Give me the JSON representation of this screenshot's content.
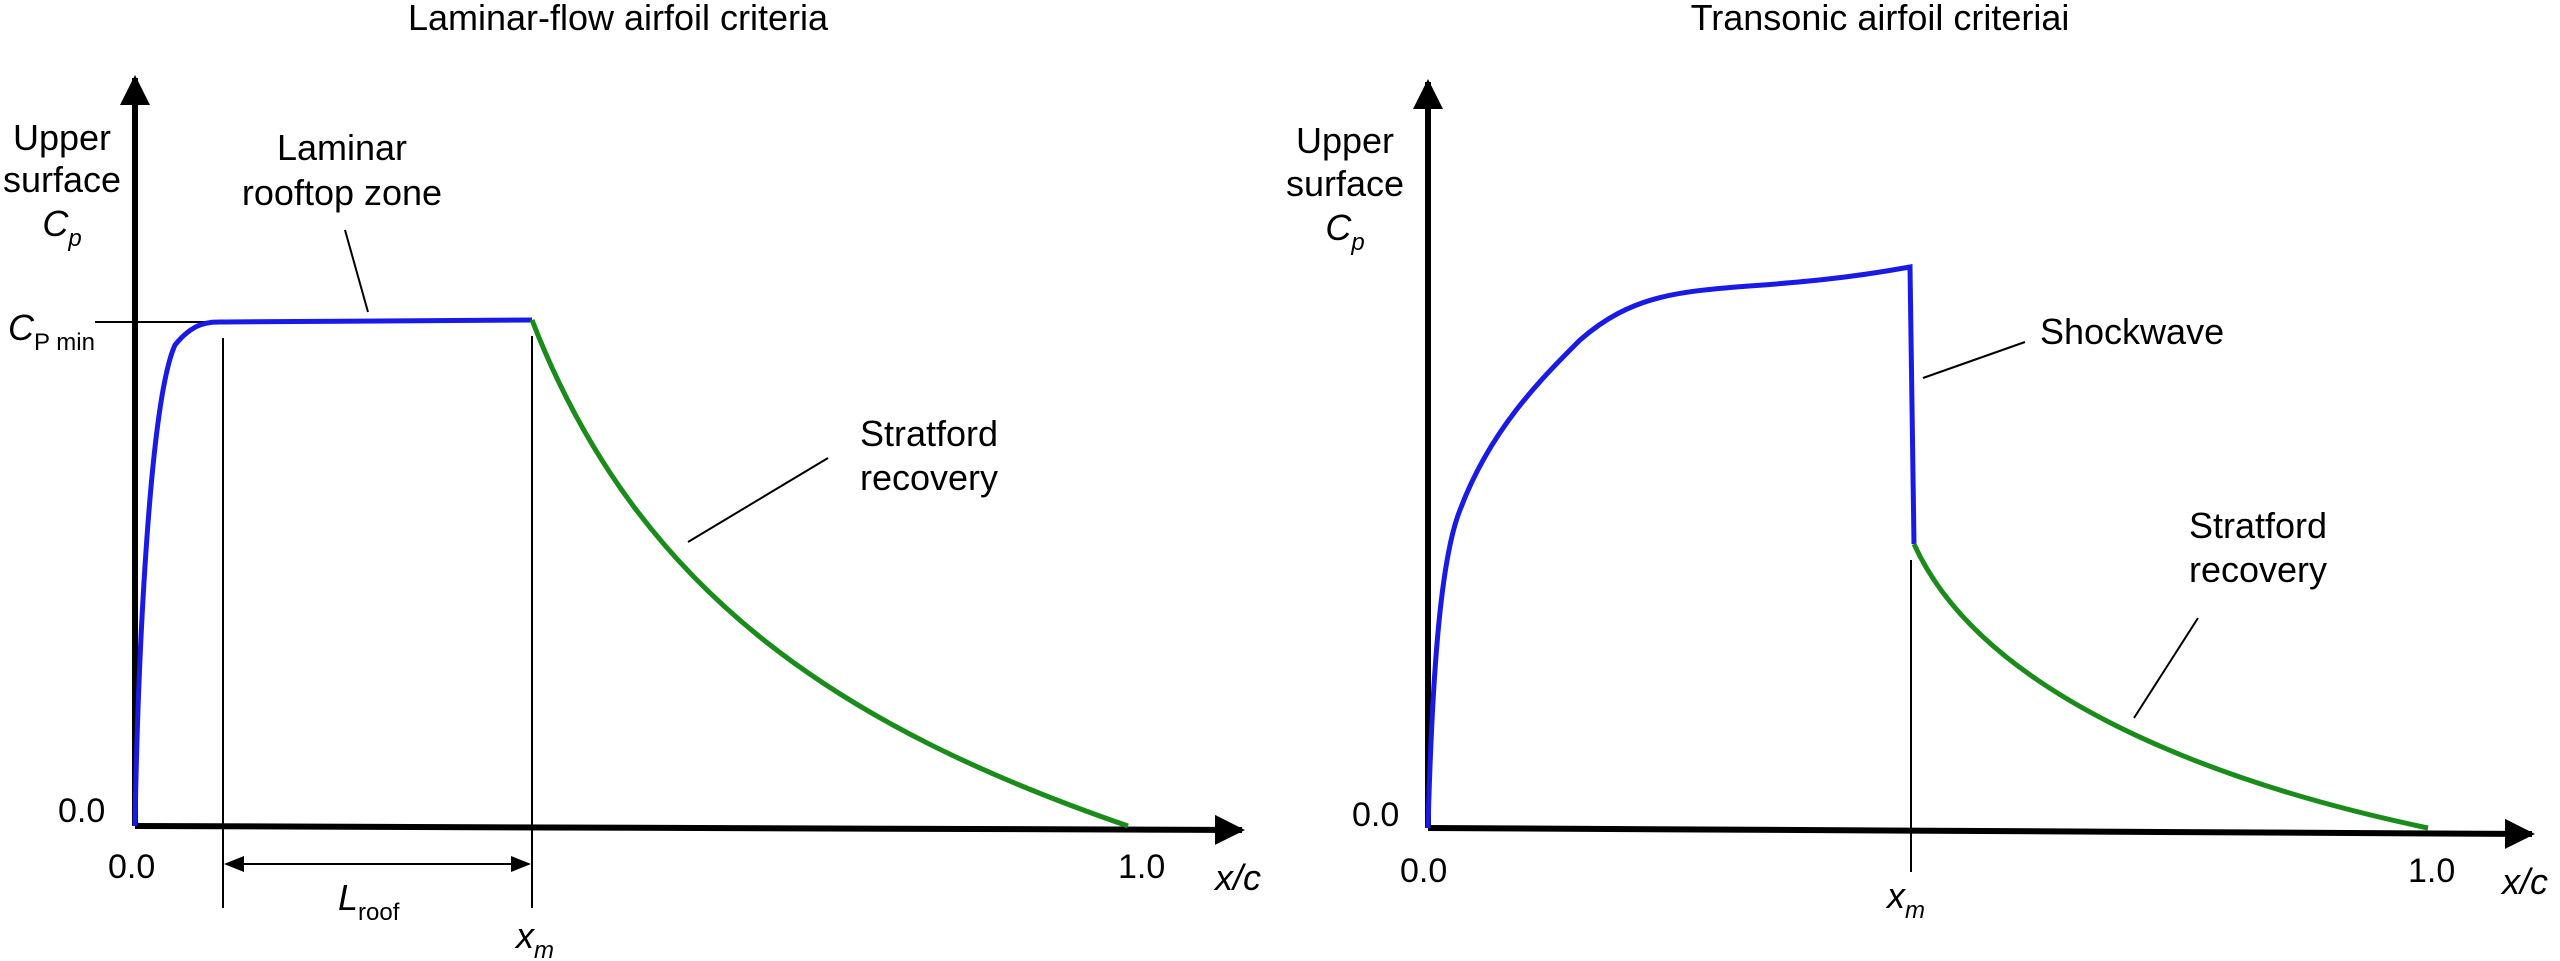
{
  "left_panel": {
    "title": "Laminar-flow airfoil criteria",
    "y_axis_label": {
      "line1": "Upper",
      "line2": "surface",
      "symbol": "C",
      "subscript": "p"
    },
    "cp_min_label": {
      "symbol": "C",
      "subscript": "P min"
    },
    "zero_y": "0.0",
    "zero_x": "0.0",
    "one_x": "1.0",
    "x_axis_label": "x/c",
    "rooftop_label": {
      "line1": "Laminar",
      "line2": "rooftop zone"
    },
    "recovery_label": {
      "line1": "Stratford",
      "line2": "recovery"
    },
    "lroof_label": {
      "symbol": "L",
      "subscript": "roof"
    },
    "xm_label": {
      "symbol": "x",
      "subscript": "m"
    }
  },
  "right_panel": {
    "title": "Transonic airfoil criteriai",
    "y_axis_label": {
      "line1": "Upper",
      "line2": "surface",
      "symbol": "C",
      "subscript": "p"
    },
    "zero_y": "0.0",
    "zero_x": "0.0",
    "one_x": "1.0",
    "x_axis_label": "x/c",
    "shockwave_label": "Shockwave",
    "recovery_label": {
      "line1": "Stratford",
      "line2": "recovery"
    },
    "xm_label": {
      "symbol": "x",
      "subscript": "m"
    }
  },
  "colors": {
    "laminar_curve": "#1a1ae6",
    "recovery_curve": "#1a8c1a",
    "axes": "#000000"
  }
}
